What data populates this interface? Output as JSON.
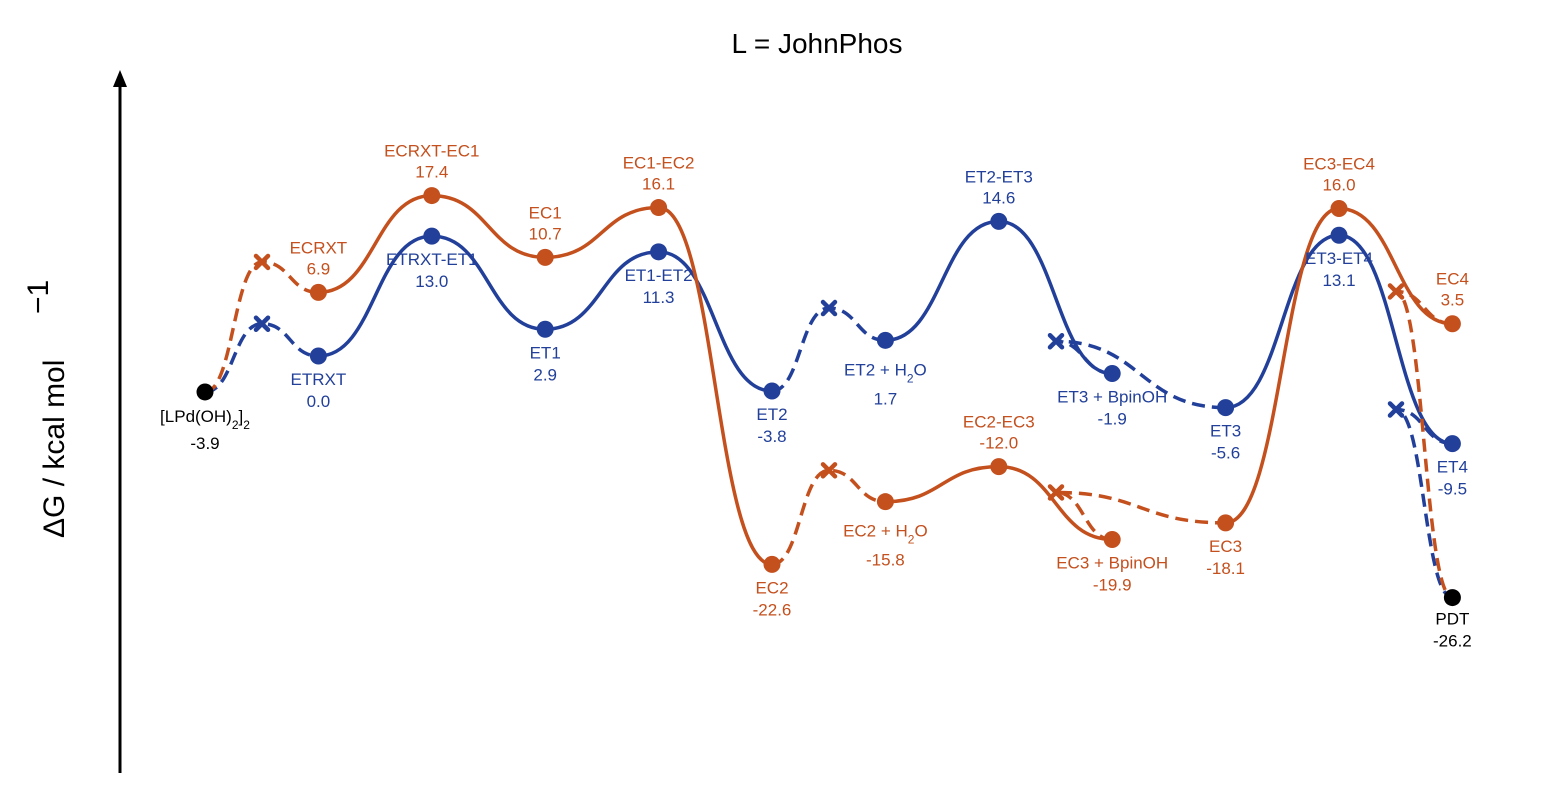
{
  "chart_data": {
    "type": "line",
    "title": "L = JohnPhos",
    "ylabel_main": "ΔG / kcal mol",
    "ylabel_sup": "−1",
    "colors": {
      "ET": "#22409a",
      "EC": "#c4501e",
      "common": "#000000"
    },
    "start": {
      "name": "[LPd(OH)2]2",
      "value": "-3.9"
    },
    "end": {
      "name": "PDT",
      "value": "-26.2"
    },
    "series": [
      {
        "name": "ET",
        "points": [
          {
            "name": "ETRXT",
            "value": "0.0"
          },
          {
            "name": "ETRXT-ET1",
            "value": "13.0"
          },
          {
            "name": "ET1",
            "value": "2.9"
          },
          {
            "name": "ET1-ET2",
            "value": "11.3"
          },
          {
            "name": "ET2",
            "value": "-3.8"
          },
          {
            "name_pre": "ET2 + H",
            "name_sub": "2",
            "name_post": "O",
            "value": "1.7"
          },
          {
            "name": "ET2-ET3",
            "value": "14.6"
          },
          {
            "name": "ET3 + BpinOH",
            "value": "-1.9"
          },
          {
            "name": "ET3",
            "value": "-5.6"
          },
          {
            "name": "ET3-ET4",
            "value": "13.1"
          },
          {
            "name": "ET4",
            "value": "-9.5"
          }
        ]
      },
      {
        "name": "EC",
        "points": [
          {
            "name": "ECRXT",
            "value": "6.9"
          },
          {
            "name": "ECRXT-EC1",
            "value": "17.4"
          },
          {
            "name": "EC1",
            "value": "10.7"
          },
          {
            "name": "EC1-EC2",
            "value": "16.1"
          },
          {
            "name": "EC2",
            "value": "-22.6"
          },
          {
            "name_pre": "EC2 + H",
            "name_sub": "2",
            "name_post": "O",
            "value": "-15.8"
          },
          {
            "name": "EC2-EC3",
            "value": "-12.0"
          },
          {
            "name": "EC3 + BpinOH",
            "value": "-19.9"
          },
          {
            "name": "EC3",
            "value": "-18.1"
          },
          {
            "name": "EC3-EC4",
            "value": "16.0"
          },
          {
            "name": "EC4",
            "value": "3.5"
          }
        ]
      }
    ]
  }
}
